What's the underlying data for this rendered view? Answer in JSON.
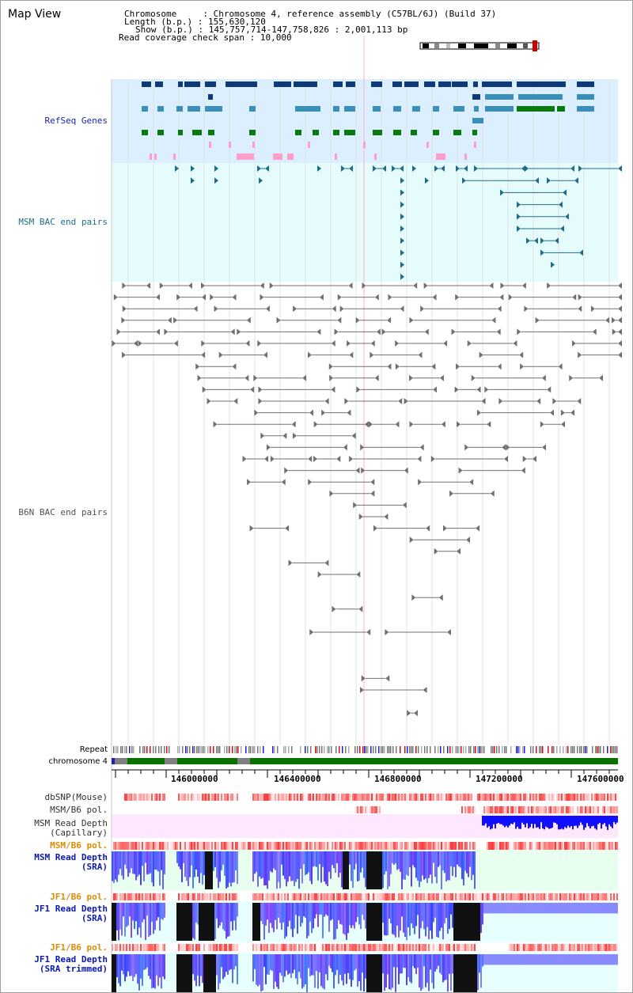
{
  "view_title": "Map View",
  "info": {
    "chromosome_key": "Chromosome",
    "chromosome_value": "Chromosome 4, reference assembly (C57BL/6J) (Build 37)",
    "length_key": "Length (b.p.)",
    "length_value": "155,630,120",
    "show_key": "Show (b.p.)",
    "show_value": "145,757,714-147,758,826 : 2,001,113 bp",
    "coverage_key": "Read coverage check span",
    "coverage_value": "10,000"
  },
  "track_labels": {
    "refseq": "RefSeq Genes",
    "msm_bac": "MSM BAC end pairs",
    "b6n_bac": "B6N BAC end pairs",
    "repeat": "Repeat",
    "chromosome": "chromosome 4",
    "dbsnp": "dbSNP(Mouse)",
    "msm_b6_pol_1": "MSM/B6 pol.",
    "msm_depth_cap_1": "MSM Read Depth",
    "msm_depth_cap_2": "(Capillary)",
    "msm_b6_pol_2": "MSM/B6 pol.",
    "msm_depth_sra_1": "MSM Read Depth",
    "msm_depth_sra_2": "(SRA)",
    "jf1_b6_pol_1": "JF1/B6 pol.",
    "jf1_depth_sra_1": "JF1 Read Depth",
    "jf1_depth_sra_2": "(SRA)",
    "jf1_b6_pol_2": "JF1/B6 pol.",
    "jf1_depth_trim_1": "JF1 Read Depth",
    "jf1_depth_trim_2": "(SRA trimmed)"
  },
  "axis": {
    "start_bp": 145757714,
    "end_bp": 147758826,
    "ticks": [
      "146000000",
      "146400000",
      "146800000",
      "147200000",
      "147600000"
    ]
  },
  "colors": {
    "refseq_bg": "#dcefff",
    "msm_bg": "#e6fbfb",
    "gene_dark": "#0e3a7a",
    "gene_mid": "#3a8fb8",
    "gene_green": "#0a7a10",
    "gene_pink": "#ff9ec8",
    "msm_bac": "#1e6e8a",
    "b6n_bac": "#707070",
    "chromosome_green": "#0a7000",
    "cap_bg": "#fde8ff",
    "sra_bg": "#e8fff0",
    "jf1_bg": "#e8ffff",
    "depth_blue": "#1010ff",
    "depth_black": "#111111",
    "pol_red": "#ff2020"
  }
}
